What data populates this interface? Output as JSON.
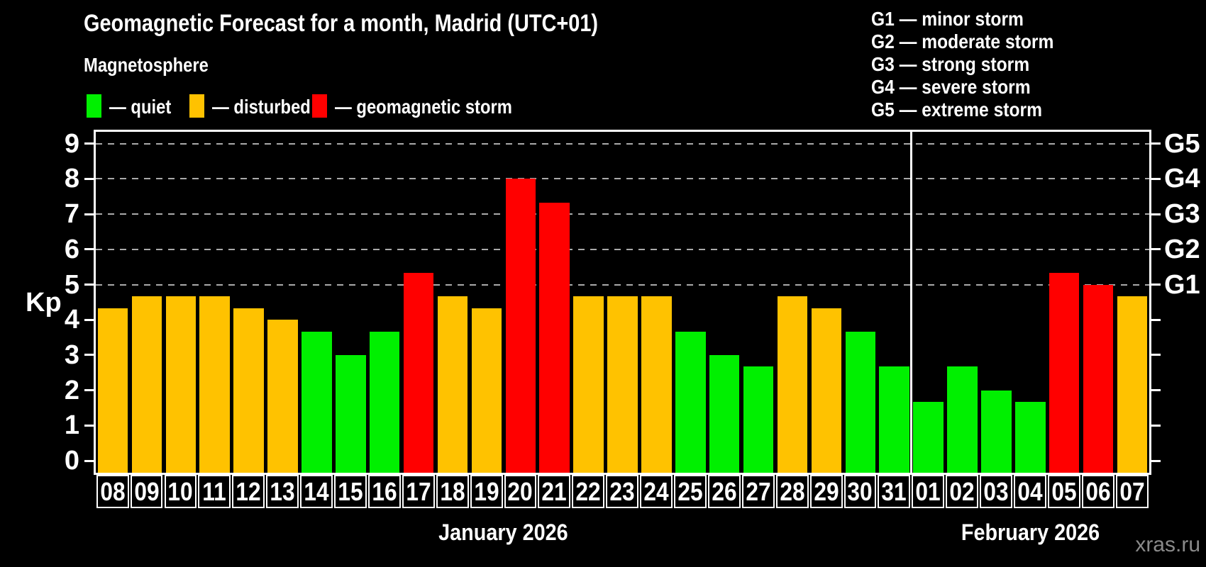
{
  "header": {
    "title": "Geomagnetic Forecast for a month, Madrid (UTC+01)",
    "subtitle": "Magnetosphere",
    "legend": [
      {
        "name": "quiet",
        "label": "— quiet",
        "color_key": "quiet"
      },
      {
        "name": "disturbed",
        "label": "— disturbed",
        "color_key": "disturbed"
      },
      {
        "name": "storm",
        "label": "— geomagnetic storm",
        "color_key": "storm"
      }
    ],
    "g_scale_lines": [
      "G1 — minor storm",
      "G2 — moderate storm",
      "G3 — strong storm",
      "G4 — severe storm",
      "G5 — extreme storm"
    ]
  },
  "chart_data": {
    "type": "bar",
    "title": "Geomagnetic Forecast for a month, Madrid (UTC+01)",
    "ylabel": "Kp",
    "ylim": [
      -0.4,
      9.4
    ],
    "yticks": [
      0,
      1,
      2,
      3,
      4,
      5,
      6,
      7,
      8,
      9
    ],
    "grid": "horizontal dashed lines at G-storm thresholds",
    "gridlines_at_kp": [
      5,
      6,
      7,
      8,
      9
    ],
    "right_axis_labels": [
      {
        "label": "G1",
        "kp": 5
      },
      {
        "label": "G2",
        "kp": 6
      },
      {
        "label": "G3",
        "kp": 7
      },
      {
        "label": "G4",
        "kp": 8
      },
      {
        "label": "G5",
        "kp": 9
      }
    ],
    "legend_position": "top-left",
    "months": [
      {
        "label": "January 2026",
        "start_index": 0,
        "days": 24
      },
      {
        "label": "February 2026",
        "start_index": 24,
        "days": 7
      }
    ],
    "bars": [
      {
        "day": "08",
        "kp": 4.33,
        "level": "disturbed"
      },
      {
        "day": "09",
        "kp": 4.67,
        "level": "disturbed"
      },
      {
        "day": "10",
        "kp": 4.67,
        "level": "disturbed"
      },
      {
        "day": "11",
        "kp": 4.67,
        "level": "disturbed"
      },
      {
        "day": "12",
        "kp": 4.33,
        "level": "disturbed"
      },
      {
        "day": "13",
        "kp": 4.0,
        "level": "disturbed"
      },
      {
        "day": "14",
        "kp": 3.67,
        "level": "quiet"
      },
      {
        "day": "15",
        "kp": 3.0,
        "level": "quiet"
      },
      {
        "day": "16",
        "kp": 3.67,
        "level": "quiet"
      },
      {
        "day": "17",
        "kp": 5.33,
        "level": "storm"
      },
      {
        "day": "18",
        "kp": 4.67,
        "level": "disturbed"
      },
      {
        "day": "19",
        "kp": 4.33,
        "level": "disturbed"
      },
      {
        "day": "20",
        "kp": 8.0,
        "level": "storm"
      },
      {
        "day": "21",
        "kp": 7.33,
        "level": "storm"
      },
      {
        "day": "22",
        "kp": 4.67,
        "level": "disturbed"
      },
      {
        "day": "23",
        "kp": 4.67,
        "level": "disturbed"
      },
      {
        "day": "24",
        "kp": 4.67,
        "level": "disturbed"
      },
      {
        "day": "25",
        "kp": 3.67,
        "level": "quiet"
      },
      {
        "day": "26",
        "kp": 3.0,
        "level": "quiet"
      },
      {
        "day": "27",
        "kp": 2.67,
        "level": "quiet"
      },
      {
        "day": "28",
        "kp": 4.67,
        "level": "disturbed"
      },
      {
        "day": "29",
        "kp": 4.33,
        "level": "disturbed"
      },
      {
        "day": "30",
        "kp": 3.67,
        "level": "quiet"
      },
      {
        "day": "31",
        "kp": 2.67,
        "level": "quiet"
      },
      {
        "day": "01",
        "kp": 1.67,
        "level": "quiet"
      },
      {
        "day": "02",
        "kp": 2.67,
        "level": "quiet"
      },
      {
        "day": "03",
        "kp": 2.0,
        "level": "quiet"
      },
      {
        "day": "04",
        "kp": 1.67,
        "level": "quiet"
      },
      {
        "day": "05",
        "kp": 5.33,
        "level": "storm"
      },
      {
        "day": "06",
        "kp": 5.0,
        "level": "storm"
      },
      {
        "day": "07",
        "kp": 4.67,
        "level": "disturbed"
      }
    ]
  },
  "colors": {
    "background": "#000000",
    "axis": "#FFFFFF",
    "grid": "#AAAAAA",
    "quiet": "#00F000",
    "disturbed": "#FFC200",
    "storm": "#FF0000",
    "watermark": "#8A8A8A"
  },
  "watermark": "xras.ru"
}
